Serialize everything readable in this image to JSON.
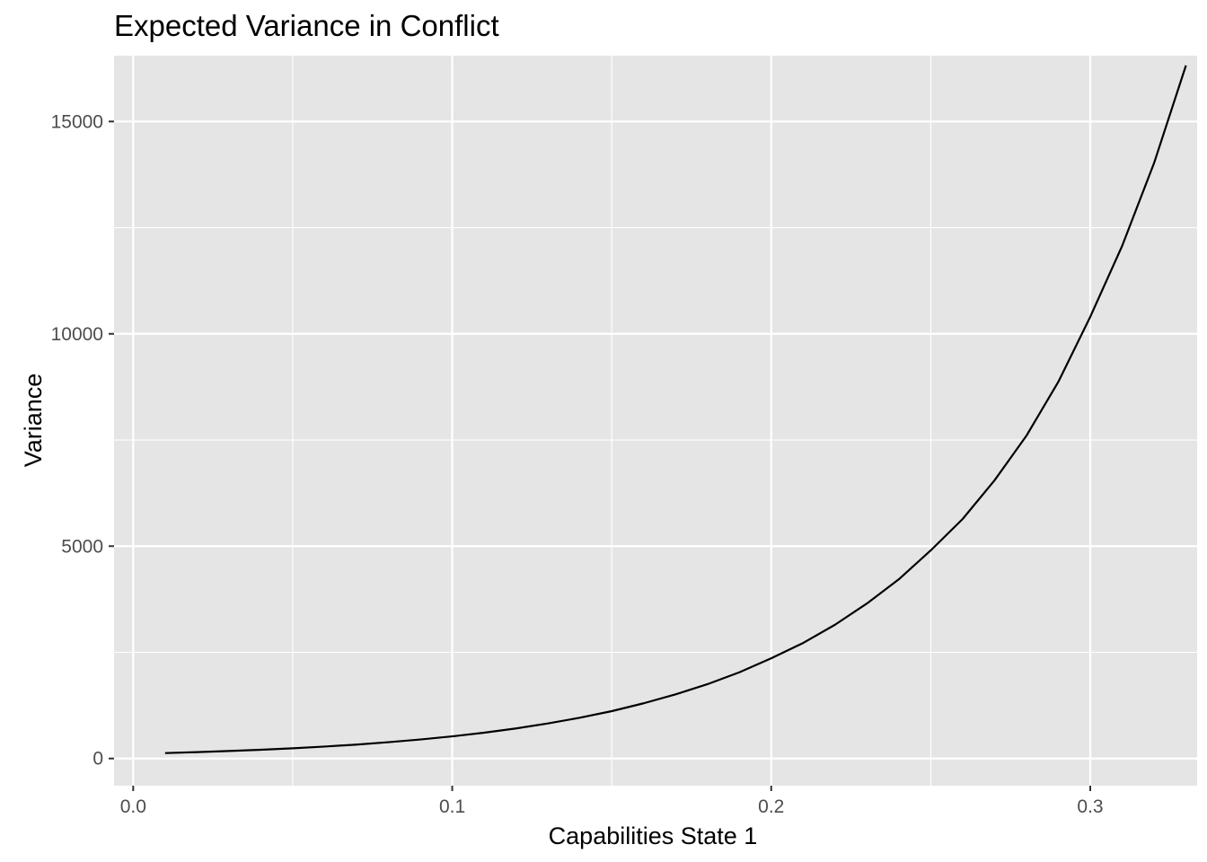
{
  "chart_data": {
    "type": "line",
    "title": "Expected Variance in Conflict",
    "xlabel": "Capabilities State 1",
    "ylabel": "Variance",
    "xlim": [
      -0.006,
      0.3335
    ],
    "ylim": [
      -640,
      16550
    ],
    "x_ticks": [
      0.0,
      0.1,
      0.2,
      0.3
    ],
    "x_tick_labels": [
      "0.0",
      "0.1",
      "0.2",
      "0.3"
    ],
    "x_minor": [
      0.05,
      0.15,
      0.25
    ],
    "y_ticks": [
      0,
      5000,
      10000,
      15000
    ],
    "y_tick_labels": [
      "0",
      "5000",
      "10000",
      "15000"
    ],
    "y_minor": [
      2500,
      7500,
      12500
    ],
    "grid": true,
    "panel_color": "#e5e5e5",
    "grid_color": "#ffffff",
    "line_color": "#000000",
    "series": [
      {
        "x": [
          0.01,
          0.02,
          0.03,
          0.04,
          0.05,
          0.06,
          0.07,
          0.08,
          0.09,
          0.1,
          0.11,
          0.12,
          0.13,
          0.14,
          0.15,
          0.16,
          0.17,
          0.18,
          0.19,
          0.2,
          0.21,
          0.22,
          0.23,
          0.24,
          0.25,
          0.26,
          0.27,
          0.28,
          0.29,
          0.3,
          0.31,
          0.32,
          0.33
        ],
        "values": [
          128,
          150,
          176,
          206,
          240,
          281,
          328,
          384,
          448,
          521,
          608,
          708,
          825,
          960,
          1115,
          1300,
          1510,
          1750,
          2030,
          2360,
          2720,
          3150,
          3650,
          4220,
          4900,
          5640,
          6550,
          7600,
          8870,
          10400,
          12070,
          14020,
          16320
        ]
      }
    ]
  }
}
